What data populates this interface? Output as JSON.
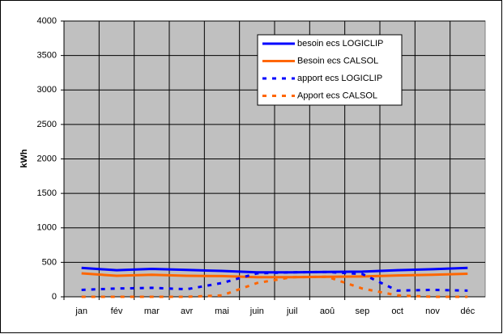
{
  "chart_data": {
    "type": "line",
    "y_label": "kWh",
    "categories": [
      "jan",
      "fév",
      "mar",
      "avr",
      "mai",
      "juin",
      "juil",
      "aoû",
      "sep",
      "oct",
      "nov",
      "déc"
    ],
    "series": [
      {
        "name": "besoin ecs LOGICLIP",
        "color": "#0000ff",
        "style": "solid",
        "values": [
          420,
          385,
          405,
          390,
          375,
          355,
          355,
          360,
          365,
          385,
          400,
          420
        ]
      },
      {
        "name": "Besoin ecs CALSOL",
        "color": "#ff6600",
        "style": "solid",
        "values": [
          340,
          305,
          320,
          305,
          300,
          285,
          285,
          290,
          295,
          310,
          320,
          335
        ]
      },
      {
        "name": "apport ecs LOGICLIP",
        "color": "#0000ff",
        "style": "dotted",
        "values": [
          100,
          120,
          130,
          110,
          200,
          340,
          355,
          360,
          330,
          90,
          100,
          90
        ]
      },
      {
        "name": "Apport ecs CALSOL",
        "color": "#ff6600",
        "style": "dotted",
        "values": [
          0,
          0,
          0,
          0,
          20,
          200,
          285,
          290,
          120,
          20,
          0,
          0
        ]
      }
    ],
    "ylim": [
      0,
      4000
    ],
    "yticks": [
      0,
      500,
      1000,
      1500,
      2000,
      2500,
      3000,
      3500,
      4000
    ],
    "grid": true,
    "legend_position": "upper-right"
  }
}
